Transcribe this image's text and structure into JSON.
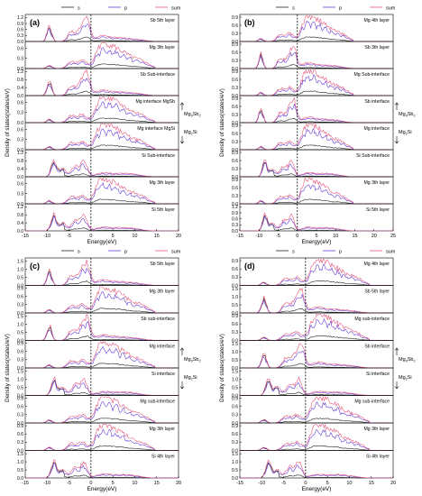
{
  "legend": {
    "s": "s",
    "p": "p",
    "sum": "sum"
  },
  "colors": {
    "s": "#222222",
    "p": "#6a3fd8",
    "sum": "#e8587a",
    "fermi": "#000000"
  },
  "x_label": "Energy(eV)",
  "y_label": "Density of states(states/eV)",
  "chart_data": [
    {
      "type": "line",
      "panel_label": "(a)",
      "x_ticks": [
        -15,
        -10,
        -5,
        0,
        5,
        10,
        15,
        20
      ],
      "xlim": [
        -15,
        20
      ],
      "fermi_level": 0,
      "interface_annotations": [
        {
          "text_main": "Mg",
          "text_sub": "3",
          "text_main2": "Sb",
          "text_sub2": "2",
          "arrow": "up"
        },
        {
          "text_main": "Mg",
          "text_sub": "2",
          "text_main2": "Si",
          "text_sub2": "",
          "arrow": "down"
        }
      ],
      "subplots": [
        {
          "label": "Sb 5th layer",
          "yticks": [
            "0.0",
            "0.3",
            "0.6",
            "0.9",
            "1.2"
          ],
          "ymax": 1.35,
          "kind": "sb"
        },
        {
          "label": "Mg 3th layer",
          "yticks": [
            "0.0",
            "0.3",
            "0.6"
          ],
          "ymax": 0.8,
          "kind": "mg"
        },
        {
          "label": "Sb Sub-interface",
          "yticks": [
            "0.0",
            "0.4",
            "0.8",
            "1.2"
          ],
          "ymax": 1.35,
          "kind": "sb"
        },
        {
          "label": "Mg interface MgSb",
          "yticks": [
            "0.0",
            "0.3",
            "0.6"
          ],
          "ymax": 0.8,
          "kind": "mg"
        },
        {
          "label": "Mg interface MgSi",
          "yticks": [
            "0.0",
            "0.3",
            "0.6"
          ],
          "ymax": 0.8,
          "kind": "mg"
        },
        {
          "label": "Si Sub-interface",
          "yticks": [
            "0.0",
            "0.4",
            "0.8",
            "1.2"
          ],
          "ymax": 1.35,
          "kind": "si"
        },
        {
          "label": "Mg 3th layer",
          "yticks": [
            "0.0",
            "0.3",
            "0.6"
          ],
          "ymax": 0.8,
          "kind": "mg"
        },
        {
          "label": "Si 5th layer",
          "yticks": [
            "0.0",
            "0.4",
            "0.8",
            "1.2"
          ],
          "ymax": 1.35,
          "kind": "si"
        }
      ]
    },
    {
      "type": "line",
      "panel_label": "(b)",
      "x_ticks": [
        -15,
        -10,
        -5,
        0,
        5,
        10,
        15,
        20,
        25
      ],
      "xlim": [
        -15,
        25
      ],
      "fermi_level": 0,
      "interface_annotations": [
        {
          "text_main": "Mg",
          "text_sub": "3",
          "text_main2": "Sb",
          "text_sub2": "2",
          "arrow": "up"
        },
        {
          "text_main": "Mg",
          "text_sub": "2",
          "text_main2": "Si",
          "text_sub2": "",
          "arrow": "down"
        }
      ],
      "subplots": [
        {
          "label": "Mg 4th layer",
          "yticks": [
            "0.0",
            "0.3",
            "0.6",
            "0.9"
          ],
          "ymax": 1.0,
          "kind": "mg"
        },
        {
          "label": "Sb 3th layer",
          "yticks": [
            "0.0",
            "0.3",
            "0.6",
            "0.9"
          ],
          "ymax": 1.0,
          "kind": "sb"
        },
        {
          "label": "Mg Sub-interface",
          "yticks": [
            "0.0",
            "0.3",
            "0.6",
            "0.9"
          ],
          "ymax": 1.0,
          "kind": "mg"
        },
        {
          "label": "Sb interface",
          "yticks": [
            "0.0",
            "0.3",
            "0.6",
            "0.9"
          ],
          "ymax": 1.0,
          "kind": "sb"
        },
        {
          "label": "Mg interface",
          "yticks": [
            "0.0",
            "0.3",
            "0.6",
            "0.9"
          ],
          "ymax": 1.0,
          "kind": "mg"
        },
        {
          "label": "Si Sub-interface",
          "yticks": [
            "0.0",
            "0.3",
            "0.6",
            "0.9"
          ],
          "ymax": 1.0,
          "kind": "si"
        },
        {
          "label": "Mg 3th layer",
          "yticks": [
            "0.0",
            "0.3",
            "0.6",
            "0.9"
          ],
          "ymax": 1.0,
          "kind": "mg"
        },
        {
          "label": "Si 5th layer",
          "yticks": [
            "0.0",
            "0.3",
            "0.6",
            "0.9",
            "1.2"
          ],
          "ymax": 1.35,
          "kind": "si"
        }
      ]
    },
    {
      "type": "line",
      "panel_label": "(c)",
      "x_ticks": [
        -15,
        -10,
        -5,
        0,
        5,
        10,
        15,
        20
      ],
      "xlim": [
        -15,
        20
      ],
      "fermi_level": 0,
      "interface_annotations": [
        {
          "text_main": "Mg",
          "text_sub": "3",
          "text_main2": "Sb",
          "text_sub2": "2",
          "arrow": "up"
        },
        {
          "text_main": "Mg",
          "text_sub": "2",
          "text_main2": "Si",
          "text_sub2": "",
          "arrow": "down"
        }
      ],
      "subplots": [
        {
          "label": "Sb 5th layer",
          "yticks": [
            "0.0",
            "0.5",
            "1.0",
            "1.5"
          ],
          "ymax": 1.7,
          "kind": "sb"
        },
        {
          "label": "Mg 3th layer",
          "yticks": [
            "0.0",
            "0.3",
            "0.6",
            "0.9"
          ],
          "ymax": 1.0,
          "kind": "mg"
        },
        {
          "label": "Sb sub-interface",
          "yticks": [
            "0.0",
            "0.5",
            "1.0",
            "1.5"
          ],
          "ymax": 1.7,
          "kind": "sb"
        },
        {
          "label": "Mg interface",
          "yticks": [
            "0.0",
            "0.3",
            "0.6",
            "0.9"
          ],
          "ymax": 1.0,
          "kind": "mg"
        },
        {
          "label": "Si interface",
          "yticks": [
            "0.0",
            "0.5",
            "1.0",
            "1.5"
          ],
          "ymax": 1.7,
          "kind": "si"
        },
        {
          "label": "Mg sub-interface",
          "yticks": [
            "0.0",
            "0.3",
            "0.6",
            "0.9"
          ],
          "ymax": 1.0,
          "kind": "mg"
        },
        {
          "label": "Mg 3th layer",
          "yticks": [
            "0.0",
            "0.3",
            "0.6",
            "0.9"
          ],
          "ymax": 1.0,
          "kind": "mg"
        },
        {
          "label": "Si 4th layer",
          "yticks": [
            "0.0",
            "0.5",
            "1.0",
            "1.5"
          ],
          "ymax": 1.7,
          "kind": "si"
        }
      ]
    },
    {
      "type": "line",
      "panel_label": "(d)",
      "x_ticks": [
        -15,
        -10,
        -5,
        0,
        5,
        10,
        15,
        20
      ],
      "xlim": [
        -15,
        20
      ],
      "fermi_level": 0,
      "interface_annotations": [
        {
          "text_main": "Mg",
          "text_sub": "3",
          "text_main2": "Sb",
          "text_sub2": "2",
          "arrow": "up"
        },
        {
          "text_main": "Mg",
          "text_sub": "2",
          "text_main2": "Si",
          "text_sub2": "",
          "arrow": "down"
        }
      ],
      "subplots": [
        {
          "label": "Mg 4th layer",
          "yticks": [
            "0.0",
            "0.3",
            "0.6",
            "0.9"
          ],
          "ymax": 1.0,
          "kind": "mg"
        },
        {
          "label": "Sb 5th layer",
          "yticks": [
            "0.0",
            "0.5",
            "1.0",
            "1.5"
          ],
          "ymax": 1.7,
          "kind": "sb"
        },
        {
          "label": "Mg sub-interface",
          "yticks": [
            "0.0",
            "0.3",
            "0.6",
            "0.9"
          ],
          "ymax": 1.0,
          "kind": "mg"
        },
        {
          "label": "Sb interface",
          "yticks": [
            "0.0",
            "0.5",
            "1.0",
            "1.5"
          ],
          "ymax": 1.7,
          "kind": "sb"
        },
        {
          "label": "Si interface",
          "yticks": [
            "0.0",
            "0.5",
            "1.0",
            "1.5"
          ],
          "ymax": 1.7,
          "kind": "si"
        },
        {
          "label": "Mg sub-interface",
          "yticks": [
            "0.0",
            "0.3",
            "0.6",
            "0.9"
          ],
          "ymax": 1.0,
          "kind": "mg"
        },
        {
          "label": "Mg 3th layer",
          "yticks": [
            "0.0",
            "0.3",
            "0.6",
            "0.9"
          ],
          "ymax": 1.0,
          "kind": "mg"
        },
        {
          "label": "Si 4th layer",
          "yticks": [
            "0.0",
            "0.5",
            "1.0",
            "1.5"
          ],
          "ymax": 1.7,
          "kind": "si"
        }
      ]
    }
  ]
}
